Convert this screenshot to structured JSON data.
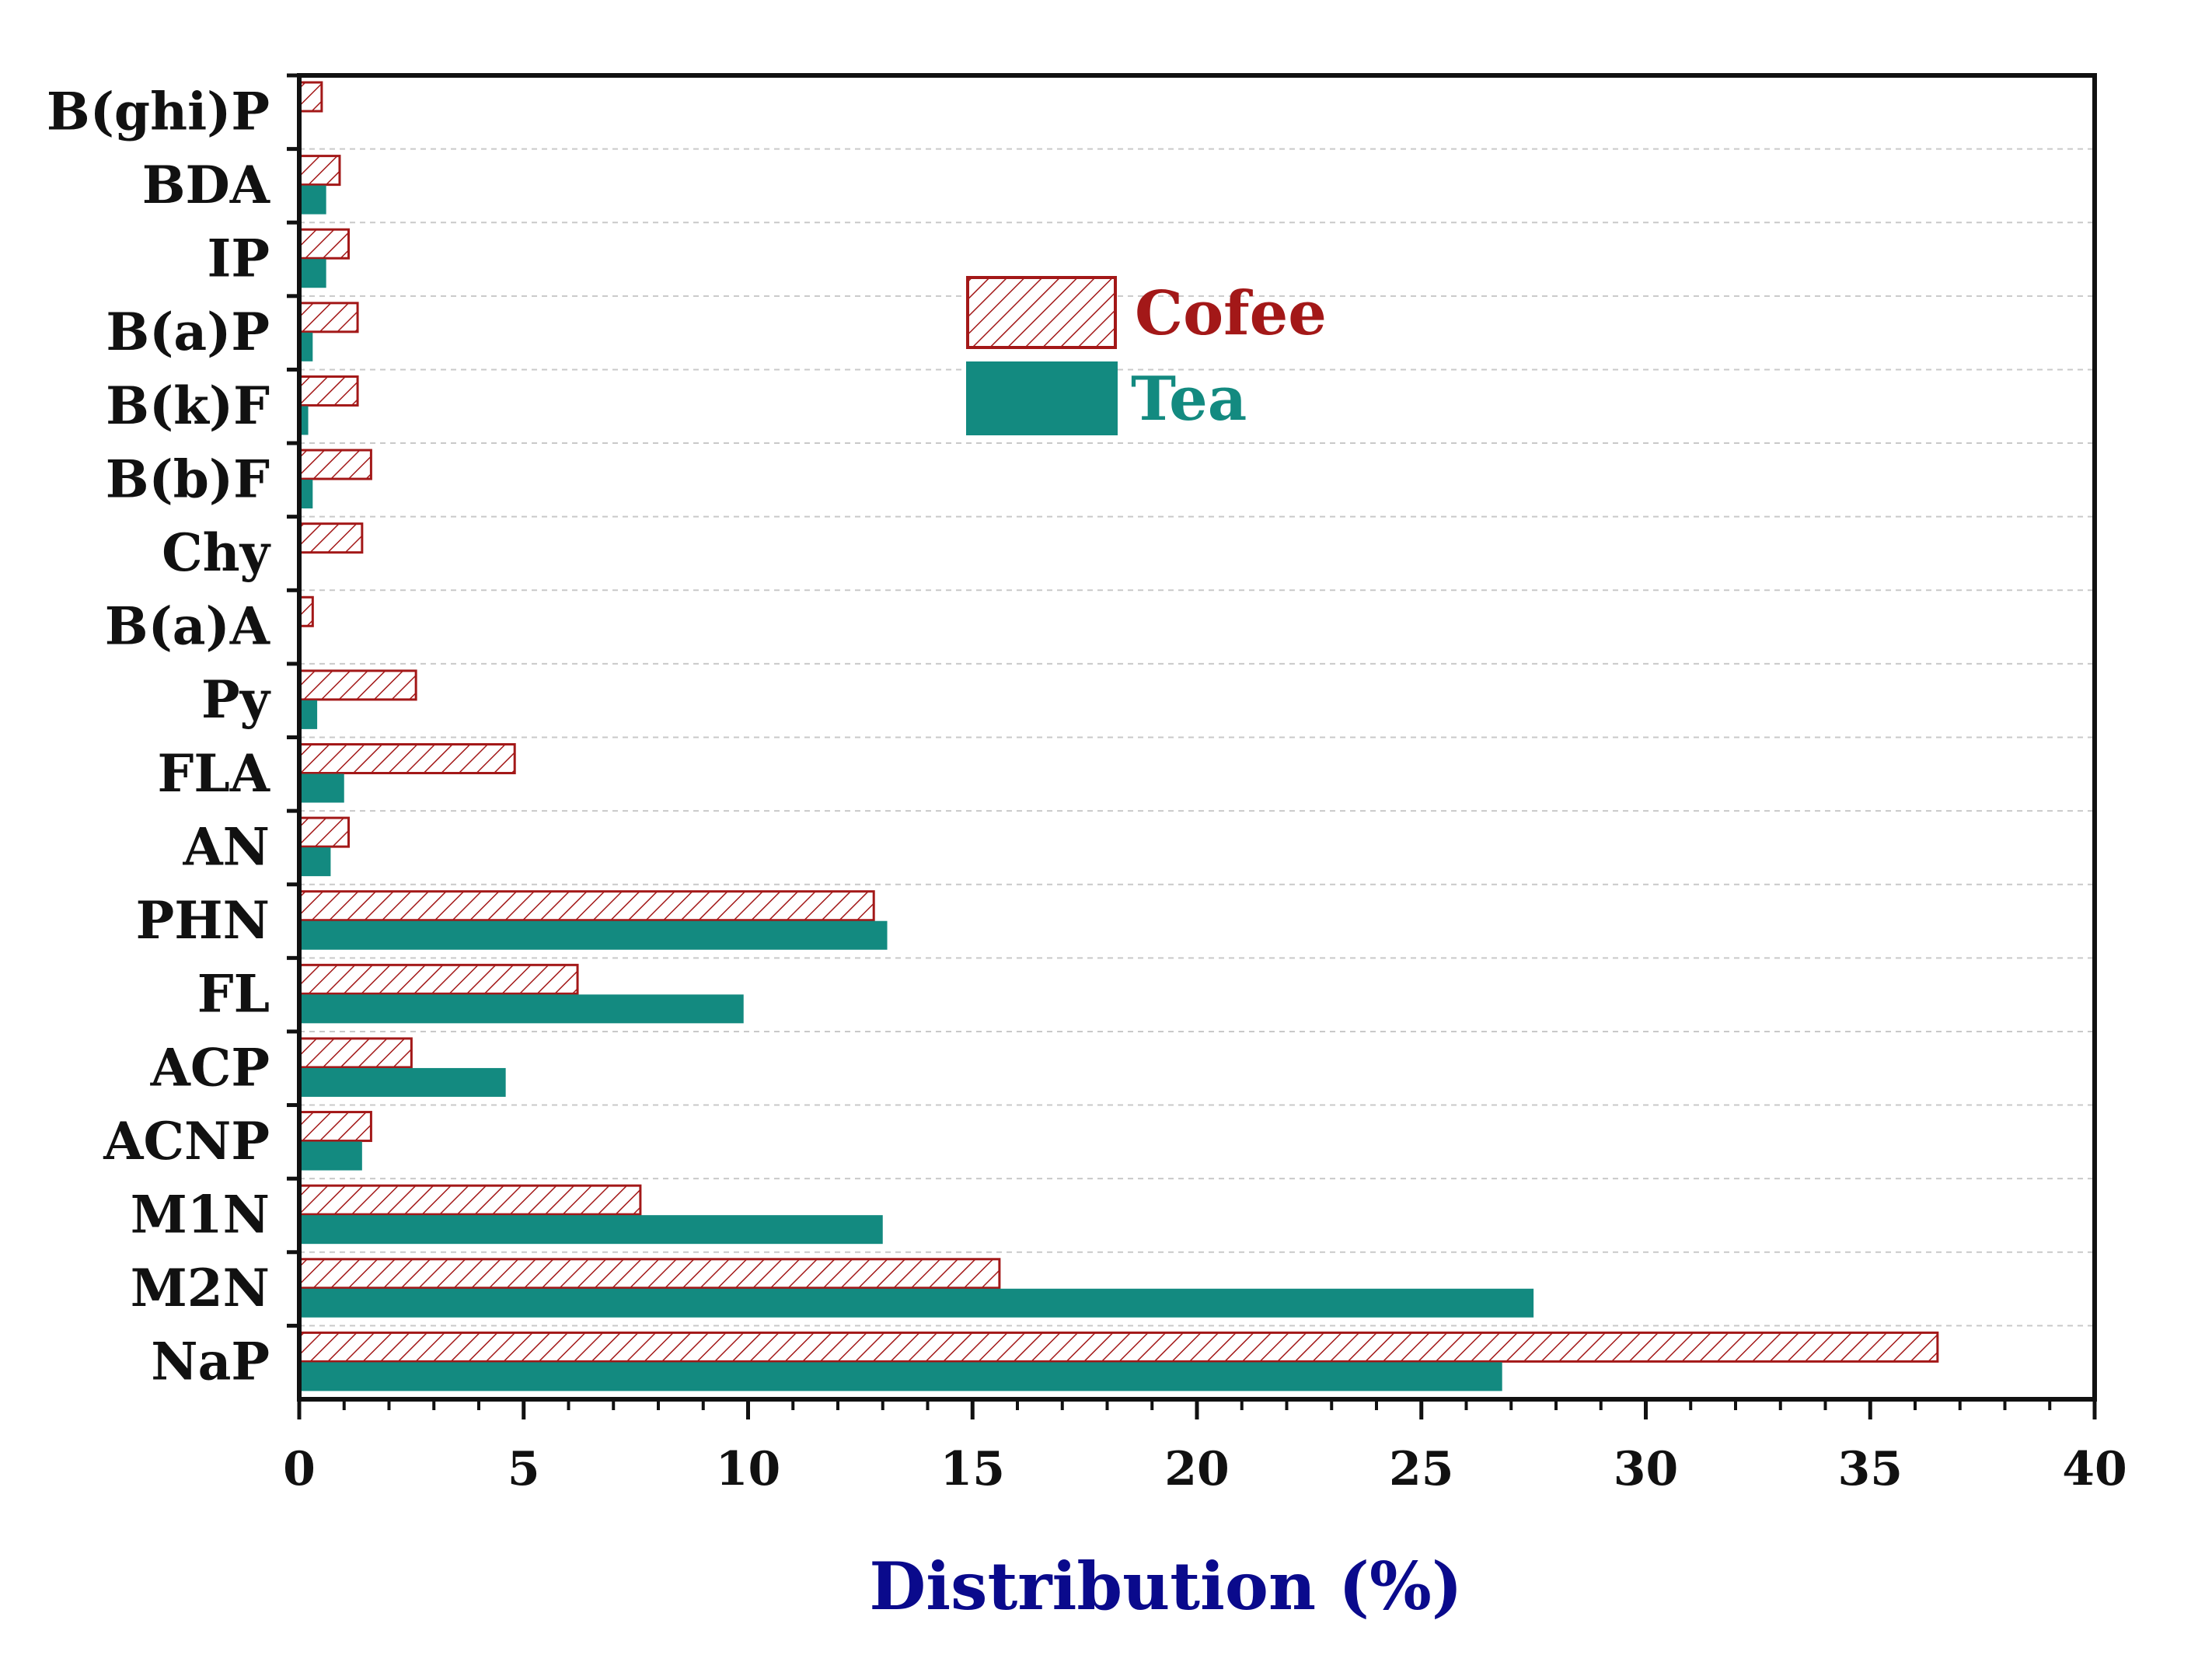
{
  "colors": {
    "cofee": "#a31818",
    "tea": "#138a80",
    "axis_title": "#0a0a8c",
    "grid": "#c9c9c9",
    "axis": "#111111"
  },
  "chart_data": {
    "type": "bar",
    "orientation": "horizontal",
    "title": "",
    "xlabel": "Distribution (%)",
    "ylabel": "",
    "xlim": [
      0,
      40
    ],
    "x_ticks": [
      "0",
      "5",
      "10",
      "15",
      "20",
      "25",
      "30",
      "35",
      "40"
    ],
    "grid": "horizontal dashed",
    "legend_position": "upper-center",
    "categories": [
      "B(ghi)P",
      "BDA",
      "IP",
      "B(a)P",
      "B(k)F",
      "B(b)F",
      "Chy",
      "B(a)A",
      "Py",
      "FLA",
      "AN",
      "PHN",
      "FL",
      "ACP",
      "ACNP",
      "M1N",
      "M2N",
      "NaP"
    ],
    "series": [
      {
        "name": "Cofee",
        "style": "hatched",
        "values": [
          0.5,
          0.9,
          1.1,
          1.3,
          1.3,
          1.6,
          1.4,
          0.3,
          2.6,
          4.8,
          1.1,
          12.8,
          6.2,
          2.5,
          1.6,
          7.6,
          15.6,
          36.5
        ]
      },
      {
        "name": "Tea",
        "style": "solid",
        "values": [
          0,
          0.6,
          0.6,
          0.3,
          0.2,
          0.3,
          0,
          0,
          0.4,
          1.0,
          0.7,
          13.1,
          9.9,
          4.6,
          1.4,
          13.0,
          27.5,
          26.8
        ]
      }
    ]
  }
}
